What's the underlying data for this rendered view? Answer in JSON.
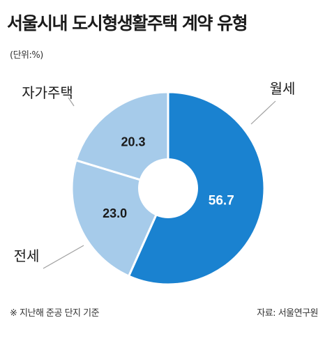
{
  "title": "서울시내 도시형생활주택 계약 유형",
  "unit_note": "(단위:%)",
  "footnote": "※ 지난해 준공 단지 기준",
  "source": "자료: 서울연구원",
  "colors": {
    "primary": "#1a82d0",
    "secondary": "#a6cbea",
    "separator": "#ffffff",
    "leader": "#a0a0a0"
  },
  "chart_data": {
    "type": "pie",
    "donut": true,
    "categories": [
      "월세",
      "전세",
      "자가주택"
    ],
    "values": [
      56.7,
      23.0,
      20.3
    ],
    "value_labels": [
      "56.7",
      "23.0",
      "20.3"
    ]
  }
}
